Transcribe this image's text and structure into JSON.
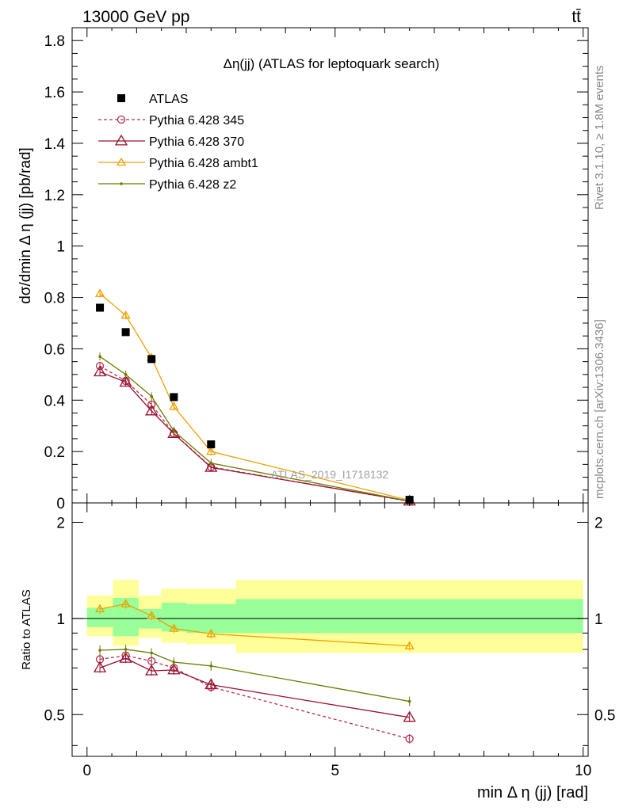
{
  "header": {
    "left": "13000 GeV pp",
    "right": "tt̄",
    "side_top": "Rivet 3.1.10, ≥ 1.8M events",
    "side_bottom": "mcplots.cern.ch [arXiv:1306.3436]"
  },
  "chart_data": {
    "type": "scatter",
    "title": "Δη(jj) (ATLAS for leptoquark search)",
    "watermark": "ATLAS_2019_I1718132",
    "xlabel": "min Δ η (jj) [rad]",
    "ylabel": "dσ/dmin Δ η (jj) [pb/rad]",
    "ratio_ylabel": "Ratio to ATLAS",
    "xlim": [
      -0.3,
      10.1
    ],
    "ylim": [
      0,
      1.85
    ],
    "ratio_ylim": [
      0.37,
      2.3
    ],
    "x_ticks": [
      "0",
      "5",
      "10"
    ],
    "y_ticks": [
      "0",
      "0.2",
      "0.4",
      "0.6",
      "0.8",
      "1",
      "1.2",
      "1.4",
      "1.6",
      "1.8"
    ],
    "ratio_y_ticks": [
      "0.5",
      "1",
      "2"
    ],
    "ratio_y_tick_values": [
      0.5,
      1,
      2
    ],
    "colors": {
      "data": "#000000",
      "p345": "#b2334f",
      "p370": "#9a1030",
      "ambt1": "#f0a000",
      "z2": "#6e7a00",
      "band_inner": "#99ff99",
      "band_outer": "#ffff99"
    },
    "data": {
      "name": "ATLAS",
      "x": [
        0.26,
        0.78,
        1.3,
        1.75,
        2.5,
        6.5
      ],
      "y": [
        0.76,
        0.665,
        0.56,
        0.412,
        0.228,
        0.012
      ]
    },
    "bins": [
      {
        "lo": 0,
        "hi": 0.52,
        "inner": [
          0.94,
          1.08
        ],
        "outer": [
          0.88,
          1.18
        ]
      },
      {
        "lo": 0.52,
        "hi": 1.04,
        "inner": [
          0.88,
          1.16
        ],
        "outer": [
          0.82,
          1.32
        ]
      },
      {
        "lo": 1.04,
        "hi": 1.5,
        "inner": [
          0.93,
          1.07
        ],
        "outer": [
          0.87,
          1.18
        ]
      },
      {
        "lo": 1.5,
        "hi": 2.0,
        "inner": [
          0.91,
          1.12
        ],
        "outer": [
          0.84,
          1.24
        ]
      },
      {
        "lo": 2.0,
        "hi": 3.0,
        "inner": [
          0.9,
          1.11
        ],
        "outer": [
          0.83,
          1.24
        ]
      },
      {
        "lo": 3.0,
        "hi": 10.0,
        "inner": [
          0.9,
          1.15
        ],
        "outer": [
          0.78,
          1.32
        ]
      }
    ],
    "series": [
      {
        "name": "Pythia 6.428 345",
        "key": "p345",
        "marker": "circle",
        "dashed": true,
        "x": [
          0.26,
          0.78,
          1.3,
          1.75,
          2.5,
          6.5
        ],
        "y": [
          0.533,
          0.475,
          0.383,
          0.27,
          0.14,
          0.006
        ],
        "ratio": [
          0.745,
          0.765,
          0.735,
          0.7,
          0.61,
          0.42
        ]
      },
      {
        "name": "Pythia 6.428 370",
        "key": "p370",
        "marker": "triangle-big",
        "dashed": false,
        "x": [
          0.26,
          0.78,
          1.3,
          1.75,
          2.5,
          6.5
        ],
        "y": [
          0.51,
          0.47,
          0.358,
          0.27,
          0.138,
          0.007
        ],
        "ratio": [
          0.7,
          0.75,
          0.685,
          0.69,
          0.62,
          0.49
        ]
      },
      {
        "name": "Pythia 6.428 ambt1",
        "key": "ambt1",
        "marker": "triangle",
        "dashed": false,
        "x": [
          0.26,
          0.78,
          1.3,
          1.75,
          2.5,
          6.5
        ],
        "y": [
          0.815,
          0.73,
          0.565,
          0.375,
          0.2,
          0.01
        ],
        "ratio": [
          1.07,
          1.11,
          1.02,
          0.93,
          0.895,
          0.82
        ]
      },
      {
        "name": "Pythia 6.428 z2",
        "key": "z2",
        "marker": "dot",
        "dashed": false,
        "x": [
          0.26,
          0.78,
          1.3,
          1.75,
          2.5,
          6.5
        ],
        "y": [
          0.57,
          0.5,
          0.415,
          0.28,
          0.155,
          0.007
        ],
        "ratio": [
          0.795,
          0.8,
          0.78,
          0.73,
          0.71,
          0.55
        ]
      }
    ]
  }
}
